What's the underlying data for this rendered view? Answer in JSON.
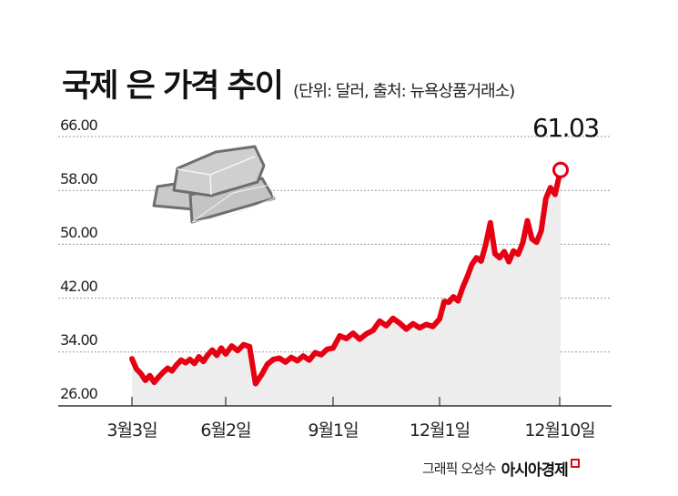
{
  "header": {
    "title": "국제 은 가격 추이",
    "subtitle": "(단위: 달러, 출처: 뉴욕상품거래소)"
  },
  "callout": {
    "label": "61.03",
    "value": 61.03
  },
  "footer": {
    "author": "그래픽 오성수",
    "brand": "아시아경제"
  },
  "colors": {
    "line": "#e60012",
    "fill": "#ededed",
    "grid": "#9a9a9a",
    "axis": "#333333",
    "icon": "#c8c8c8",
    "icon_stroke": "#6e6e6e"
  },
  "icon": "silver-bars-icon",
  "chart_data": {
    "type": "line",
    "title": "국제 은 가격 추이",
    "subtitle": "(단위: 달러, 출처: 뉴욕상품거래소)",
    "xlabel": "",
    "ylabel": "",
    "unit": "달러",
    "ylim": [
      26,
      66
    ],
    "yticks": [
      "66.00",
      "58.00",
      "50.00",
      "42.00",
      "34.00",
      "26.00"
    ],
    "xticks": [
      "3월3일",
      "6월2일",
      "9월1일",
      "12월1일",
      "12월10일"
    ],
    "grid": true,
    "grid_style": "dotted horizontal",
    "legend": "none",
    "annotation": {
      "text": "61.03",
      "at": "12월10일",
      "value": 61.03
    },
    "series": [
      {
        "name": "은 가격",
        "points": [
          {
            "x": "3월3일",
            "y": 33.0
          },
          {
            "y": 31.5
          },
          {
            "y": 30.8
          },
          {
            "y": 29.8
          },
          {
            "y": 30.5
          },
          {
            "y": 29.5
          },
          {
            "y": 30.3
          },
          {
            "y": 31.0
          },
          {
            "y": 31.6
          },
          {
            "y": 31.2
          },
          {
            "y": 32.1
          },
          {
            "y": 32.8
          },
          {
            "y": 32.4
          },
          {
            "y": 32.9
          },
          {
            "y": 32.3
          },
          {
            "y": 33.3
          },
          {
            "y": 32.6
          },
          {
            "y": 33.6
          },
          {
            "y": 34.3
          },
          {
            "y": 33.5
          },
          {
            "y": 34.6
          },
          {
            "x": "6월2일",
            "y": 33.7
          },
          {
            "y": 34.9
          },
          {
            "y": 34.2
          },
          {
            "y": 35.1
          },
          {
            "y": 34.8
          },
          {
            "y": 29.3
          },
          {
            "y": 30.6
          },
          {
            "y": 32.2
          },
          {
            "y": 32.9
          },
          {
            "y": 33.1
          },
          {
            "y": 32.5
          },
          {
            "y": 33.2
          },
          {
            "y": 32.7
          },
          {
            "y": 33.4
          },
          {
            "y": 32.8
          },
          {
            "y": 33.9
          },
          {
            "y": 33.6
          },
          {
            "y": 34.4
          },
          {
            "x": "9월1일",
            "y": 34.6
          },
          {
            "y": 36.4
          },
          {
            "y": 36.0
          },
          {
            "y": 36.8
          },
          {
            "y": 35.9
          },
          {
            "y": 36.7
          },
          {
            "y": 37.2
          },
          {
            "y": 38.6
          },
          {
            "y": 37.9
          },
          {
            "y": 39.0
          },
          {
            "y": 38.3
          },
          {
            "y": 37.4
          },
          {
            "y": 38.2
          },
          {
            "y": 37.6
          },
          {
            "y": 38.1
          },
          {
            "y": 37.8
          },
          {
            "x": "12월1일",
            "y": 38.9
          },
          {
            "y": 41.5
          },
          {
            "y": 41.4
          },
          {
            "y": 42.2
          },
          {
            "y": 41.6
          },
          {
            "y": 43.6
          },
          {
            "y": 45.2
          },
          {
            "y": 47.0
          },
          {
            "y": 48.0
          },
          {
            "y": 47.5
          },
          {
            "y": 50.0
          },
          {
            "y": 53.2
          },
          {
            "y": 48.6
          },
          {
            "y": 48.0
          },
          {
            "y": 48.9
          },
          {
            "y": 47.4
          },
          {
            "y": 49.0
          },
          {
            "y": 48.5
          },
          {
            "y": 50.2
          },
          {
            "y": 53.5
          },
          {
            "y": 50.8
          },
          {
            "y": 50.3
          },
          {
            "y": 52.0
          },
          {
            "y": 56.8
          },
          {
            "y": 58.4
          },
          {
            "y": 57.4
          },
          {
            "x": "12월10일",
            "y": 61.03
          }
        ]
      }
    ]
  }
}
